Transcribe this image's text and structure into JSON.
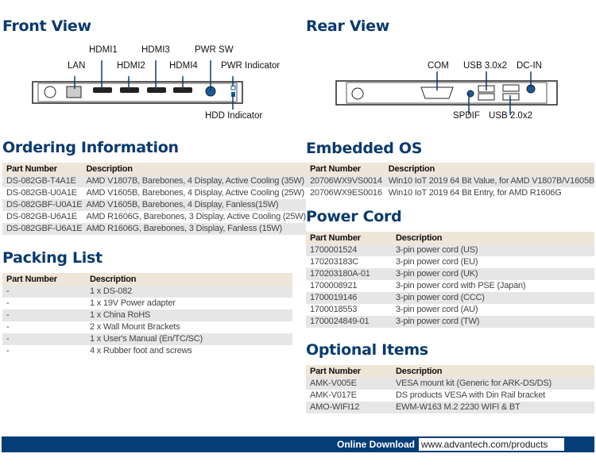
{
  "front_view": {
    "title": "Front View",
    "labels": {
      "hdmi1": "HDMI1",
      "hdmi2": "HDMI2",
      "hdmi3": "HDMI3",
      "hdmi4": "HDMI4",
      "lan": "LAN",
      "pwr_sw": "PWR SW",
      "pwr_ind": "PWR Indicator",
      "hdd_ind": "HDD Indicator"
    }
  },
  "rear_view": {
    "title": "Rear View",
    "labels": {
      "com": "COM",
      "usb3": "USB 3.0x2",
      "dcin": "DC-IN",
      "spdif": "SPDIF",
      "usb2": "USB 2.0x2"
    }
  },
  "ordering": {
    "title": "Ordering Information",
    "headers": [
      "Part Number",
      "Description"
    ],
    "rows": [
      [
        "DS-082GB-T4A1E",
        "AMD V1807B, Barebones, 4 Display, Active Cooling (35W)"
      ],
      [
        "DS-082GB-U0A1E",
        "AMD V1605B, Barebones, 4 Display, Active Cooling (25W)"
      ],
      [
        "DS-082GBF-U0A1E",
        "AMD V1605B, Barebones, 4 Display, Fanless(15W)"
      ],
      [
        "DS-082GB-U6A1E",
        "AMD R1606G, Barebones, 3 Display, Active Cooling (25W)"
      ],
      [
        "DS-082GBF-U6A1E",
        "AMD R1606G, Barebones, 3 Display, Fanless (15W)"
      ]
    ]
  },
  "packing": {
    "title": "Packing List",
    "headers": [
      "Part Number",
      "Description"
    ],
    "rows": [
      [
        "-",
        "1 x DS-082"
      ],
      [
        "-",
        "1 x 19V Power adapter"
      ],
      [
        "-",
        "1 x China RoHS"
      ],
      [
        "-",
        "2 x Wall Mount Brackets"
      ],
      [
        "-",
        "1 x User's Manual (En/TC/SC)"
      ],
      [
        "-",
        "4 x Rubber foot and screws"
      ]
    ]
  },
  "embedded_os": {
    "title": "Embedded OS",
    "headers": [
      "Part Number",
      "Description"
    ],
    "rows": [
      [
        "20706WX9VS0014",
        "Win10 IoT 2019 64 Bit Value, for AMD V1807B/V1605B"
      ],
      [
        "20706WX9ES0016",
        "Win10 IoT 2019 64 Bit Entry, for AMD R1606G"
      ]
    ]
  },
  "power_cord": {
    "title": "Power Cord",
    "headers": [
      "Part Number",
      "Description"
    ],
    "rows": [
      [
        "1700001524",
        "3-pin power cord (US)"
      ],
      [
        "170203183C",
        "3-pin power cord (EU)"
      ],
      [
        "170203180A-01",
        "3-pin power cord (UK)"
      ],
      [
        "1700008921",
        "3-pin power cord with PSE (Japan)"
      ],
      [
        "1700019146",
        "3-pin power cord (CCC)"
      ],
      [
        "1700018553",
        "3-pin power cord (AU)"
      ],
      [
        "1700024849-01",
        "3-pin power cord (TW)"
      ]
    ]
  },
  "optional": {
    "title": "Optional Items",
    "headers": [
      "Part Number",
      "Description"
    ],
    "rows": [
      [
        "AMK-V005E",
        "VESA mount kit (Generic for ARK-DS/DS)"
      ],
      [
        "AMK-V017E",
        "DS products VESA with Din Rail bracket"
      ],
      [
        "AMO-WIFI12",
        "EWM-W163 M.2 2230 WIFI & BT"
      ]
    ]
  },
  "footer": {
    "label": "Online Download",
    "url": "www.advantech.com/products"
  },
  "colors": {
    "heading": "#0b3a6e",
    "table_header": "#efe5d8",
    "row_alt": "#e6e6e6",
    "footer": "#053d78"
  }
}
